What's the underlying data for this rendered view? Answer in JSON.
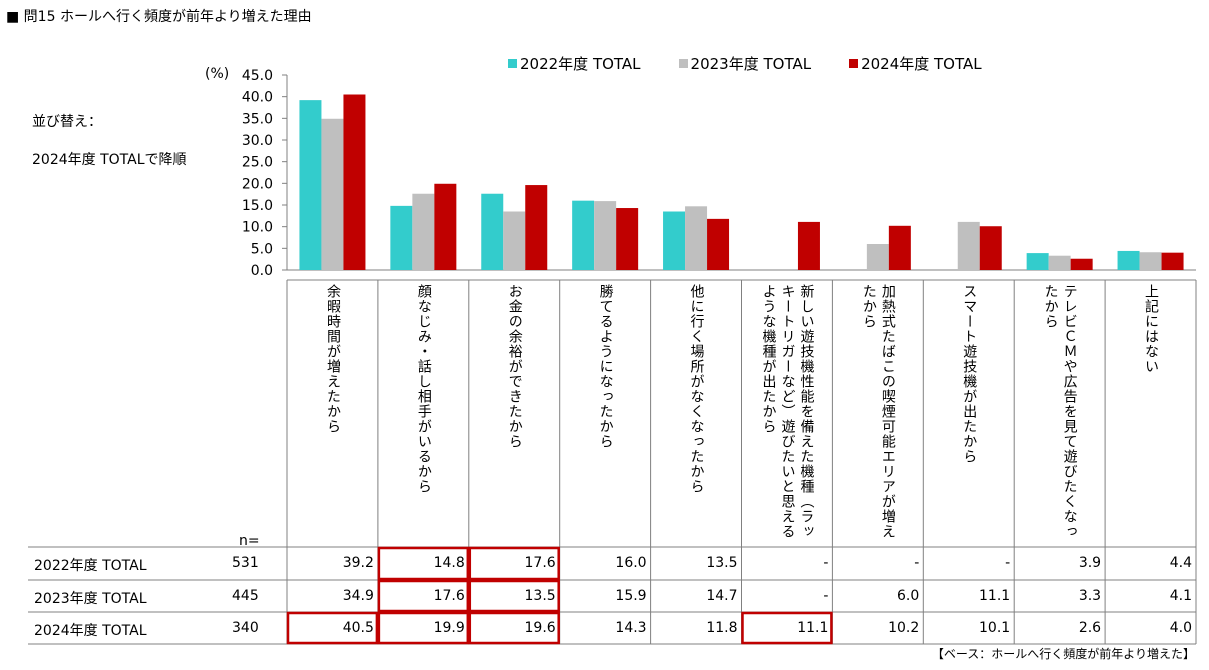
{
  "title": "■ 問15 ホールへ行く頻度が前年より増えた理由",
  "sort_label": "並び替え：",
  "sort_value": "2024年度 TOTALで降順",
  "footnote": "【ベース：ホールへ行く頻度が前年より増えた】",
  "chart_data": {
    "type": "bar",
    "unit_label": "(%)",
    "ylim": [
      0,
      45
    ],
    "yticks": [
      "0.0",
      "5.0",
      "10.0",
      "15.0",
      "20.0",
      "25.0",
      "30.0",
      "35.0",
      "40.0",
      "45.0"
    ],
    "legend_position": "top",
    "categories": [
      "余暇時間が増えたから",
      "顔なじみ・話し相手がいるから",
      "お金の余裕ができたから",
      "勝てるようになったから",
      "他に行く場所がなくなったから",
      "新しい遊技機性能を備えた機種（ラッキートリガーなど）遊びたいと思えるような機種が出たから",
      "加熱式たばこの喫煙可能エリアが増えたから",
      "スマート遊技機が出たから",
      "テレビＣＭや広告を見て遊びたくなったから",
      "上記にはない"
    ],
    "n_label": "n=",
    "series": [
      {
        "name": "2022年度 TOTAL",
        "color": "#33CCCC",
        "n": "531",
        "values": [
          39.2,
          14.8,
          17.6,
          16.0,
          13.5,
          null,
          null,
          null,
          3.9,
          4.4
        ],
        "display": [
          "39.2",
          "14.8",
          "17.6",
          "16.0",
          "13.5",
          "-",
          "-",
          "-",
          "3.9",
          "4.4"
        ]
      },
      {
        "name": "2023年度 TOTAL",
        "color": "#BFBFBF",
        "n": "445",
        "values": [
          34.9,
          17.6,
          13.5,
          15.9,
          14.7,
          null,
          6.0,
          11.1,
          3.3,
          4.1
        ],
        "display": [
          "34.9",
          "17.6",
          "13.5",
          "15.9",
          "14.7",
          "-",
          "6.0",
          "11.1",
          "3.3",
          "4.1"
        ]
      },
      {
        "name": "2024年度 TOTAL",
        "color": "#C00000",
        "n": "340",
        "values": [
          40.5,
          19.9,
          19.6,
          14.3,
          11.8,
          11.1,
          10.2,
          10.1,
          2.6,
          4.0
        ],
        "display": [
          "40.5",
          "19.9",
          "19.6",
          "14.3",
          "11.8",
          "11.1",
          "10.2",
          "10.1",
          "2.6",
          "4.0"
        ]
      }
    ],
    "highlighted_cells": [
      [
        2,
        0
      ],
      [
        0,
        1
      ],
      [
        1,
        1
      ],
      [
        2,
        1
      ],
      [
        0,
        2
      ],
      [
        1,
        2
      ],
      [
        2,
        2
      ],
      [
        2,
        5
      ]
    ],
    "highlight_color": "#C00000"
  }
}
